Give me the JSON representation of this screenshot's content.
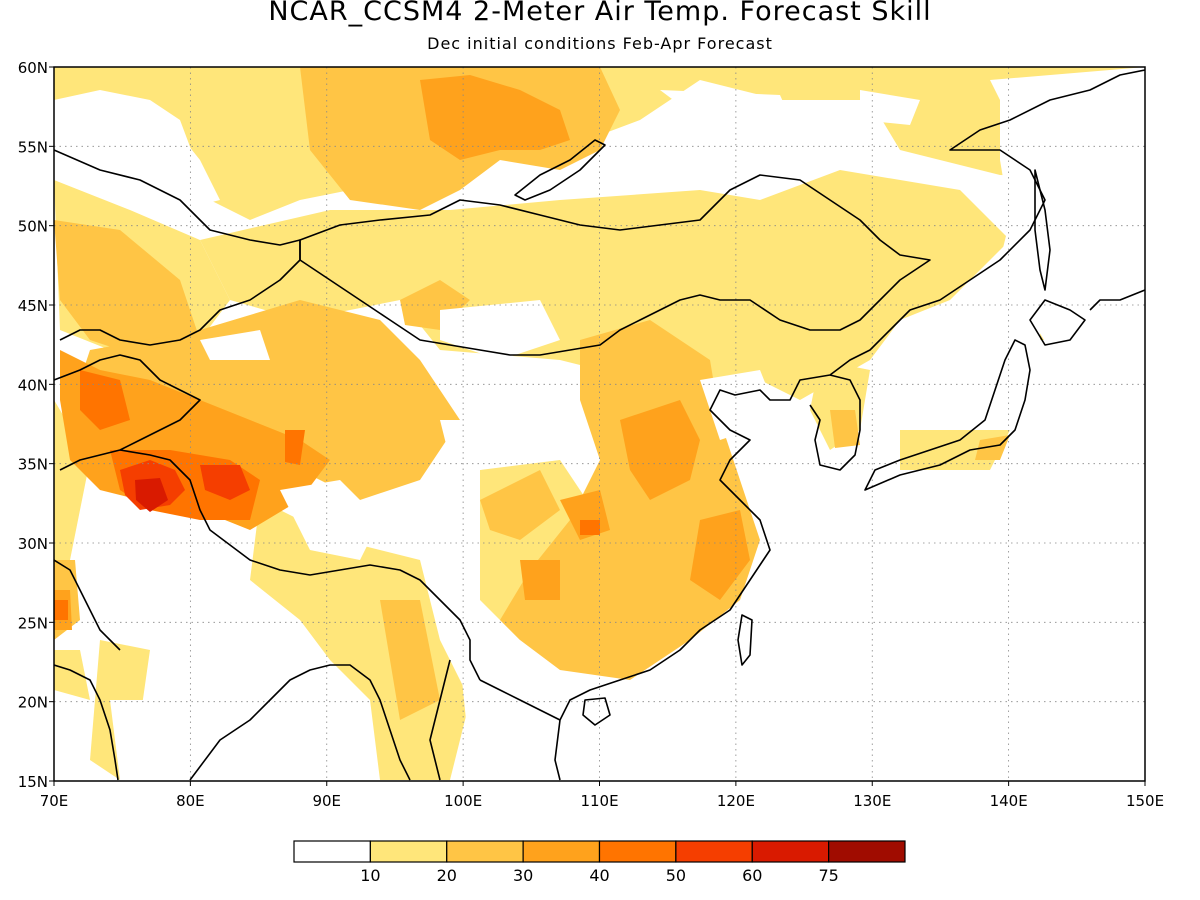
{
  "title": "NCAR_CCSM4 2-Meter Air Temp. Forecast Skill",
  "subtitle": "Dec initial conditions  Feb-Apr Forecast",
  "map": {
    "lon_range": [
      70,
      150
    ],
    "lat_range": [
      15,
      60
    ],
    "lon_ticks": [
      "70E",
      "80E",
      "90E",
      "100E",
      "110E",
      "120E",
      "130E",
      "140E",
      "150E"
    ],
    "lat_ticks": [
      "15N",
      "20N",
      "25N",
      "30N",
      "35N",
      "40N",
      "45N",
      "50N",
      "55N",
      "60N"
    ],
    "grid": "dotted"
  },
  "legend": {
    "colors": [
      "#ffffff",
      "#ffe67a",
      "#ffc545",
      "#ffa21c",
      "#ff7400",
      "#f53e00",
      "#d91a00",
      "#a00c00"
    ],
    "labels": [
      "10",
      "20",
      "30",
      "40",
      "50",
      "60",
      "75"
    ]
  },
  "chart_data": {
    "type": "heatmap",
    "title": "NCAR_CCSM4 2-Meter Air Temp. Forecast Skill",
    "subtitle": "Dec initial conditions  Feb-Apr Forecast",
    "x_range": [
      70,
      150
    ],
    "y_range": [
      15,
      60
    ],
    "x_ticks": [
      70,
      80,
      90,
      100,
      110,
      120,
      130,
      140,
      150
    ],
    "y_ticks": [
      15,
      20,
      25,
      30,
      35,
      40,
      45,
      50,
      55,
      60
    ],
    "bins": [
      0,
      10,
      20,
      30,
      40,
      50,
      60,
      75
    ],
    "regions": [
      {
        "lon": [
          70,
          105
        ],
        "lat": [
          45,
          60
        ],
        "level": 20
      },
      {
        "lon": [
          98,
          113
        ],
        "lat": [
          50,
          60
        ],
        "level": 30
      },
      {
        "lon": [
          70,
          82
        ],
        "lat": [
          35,
          45
        ],
        "level": 30
      },
      {
        "lon": [
          75,
          88
        ],
        "lat": [
          32,
          38
        ],
        "level": 40
      },
      {
        "lon": [
          76,
          81
        ],
        "lat": [
          31,
          35
        ],
        "level": 50
      },
      {
        "lon": [
          100,
          121
        ],
        "lat": [
          23,
          33
        ],
        "level": 30
      },
      {
        "lon": [
          118,
          121
        ],
        "lat": [
          28,
          33
        ],
        "level": 40
      },
      {
        "lon": [
          113,
          122
        ],
        "lat": [
          35,
          48
        ],
        "level": 20
      },
      {
        "lon": [
          125,
          140
        ],
        "lat": [
          44,
          55
        ],
        "level": 10
      },
      {
        "lon": [
          92,
          101
        ],
        "lat": [
          15,
          28
        ],
        "level": 20
      }
    ],
    "legend_placement": "bottom"
  }
}
